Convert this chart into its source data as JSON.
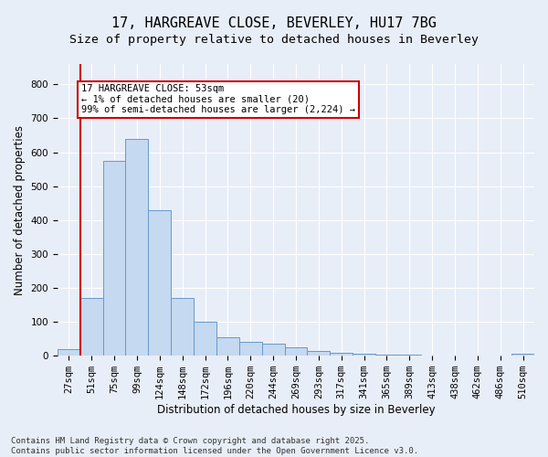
{
  "title": "17, HARGREAVE CLOSE, BEVERLEY, HU17 7BG",
  "subtitle": "Size of property relative to detached houses in Beverley",
  "xlabel": "Distribution of detached houses by size in Beverley",
  "ylabel": "Number of detached properties",
  "categories": [
    "27sqm",
    "51sqm",
    "75sqm",
    "99sqm",
    "124sqm",
    "148sqm",
    "172sqm",
    "196sqm",
    "220sqm",
    "244sqm",
    "269sqm",
    "293sqm",
    "317sqm",
    "341sqm",
    "365sqm",
    "389sqm",
    "413sqm",
    "438sqm",
    "462sqm",
    "486sqm",
    "510sqm"
  ],
  "values": [
    20,
    170,
    575,
    640,
    430,
    170,
    100,
    55,
    40,
    35,
    25,
    15,
    10,
    5,
    3,
    2,
    1,
    0,
    0,
    0,
    5
  ],
  "bar_color": "#c5d9f0",
  "bar_edge_color": "#6699cc",
  "vline_x_index": 1,
  "vline_color": "#cc0000",
  "annotation_text": "17 HARGREAVE CLOSE: 53sqm\n← 1% of detached houses are smaller (20)\n99% of semi-detached houses are larger (2,224) →",
  "annotation_box_color": "#ffffff",
  "annotation_box_edge": "#cc0000",
  "ylim": [
    0,
    860
  ],
  "yticks": [
    0,
    100,
    200,
    300,
    400,
    500,
    600,
    700,
    800
  ],
  "footer_text": "Contains HM Land Registry data © Crown copyright and database right 2025.\nContains public sector information licensed under the Open Government Licence v3.0.",
  "bg_color": "#e8eef8",
  "grid_color": "#ffffff",
  "title_fontsize": 11,
  "subtitle_fontsize": 9.5,
  "axis_label_fontsize": 8.5,
  "tick_fontsize": 7.5,
  "annotation_fontsize": 7.5,
  "footer_fontsize": 6.5
}
